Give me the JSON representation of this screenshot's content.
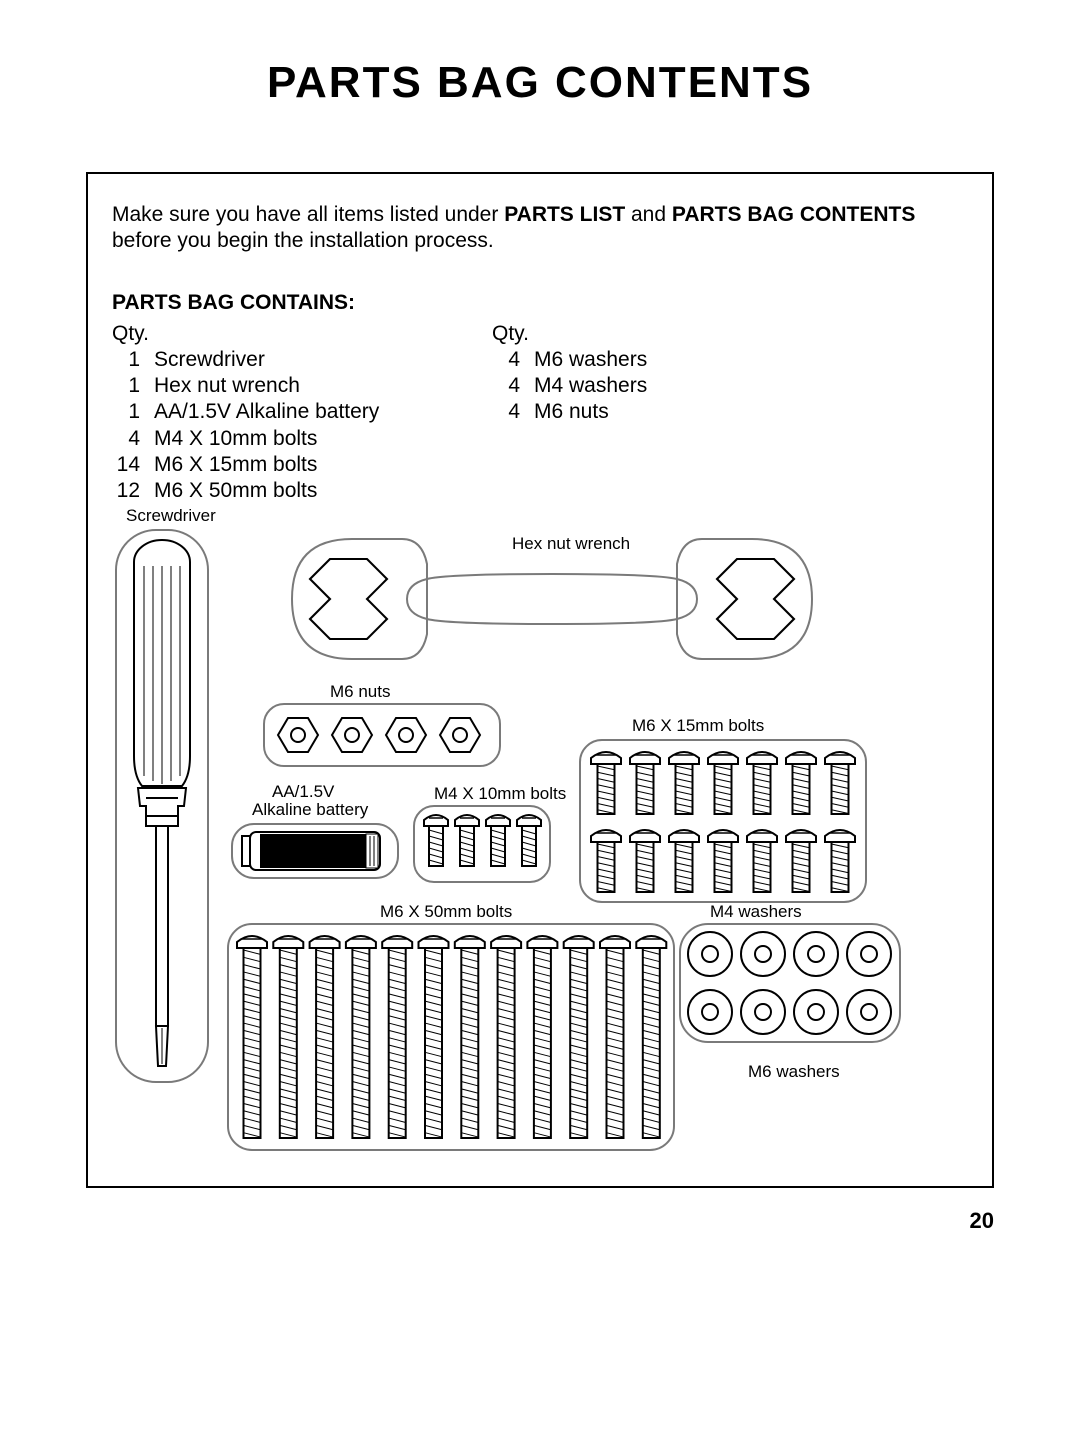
{
  "page_title": "PARTS BAG CONTENTS",
  "intro_prefix": "Make sure you have all items listed under ",
  "intro_bold1": "PARTS LIST",
  "intro_mid": " and ",
  "intro_bold2": "PARTS BAG CONTENTS",
  "intro_suffix": " before you begin the installation process.",
  "section_label": "PARTS BAG CONTAINS:",
  "qty_header": "Qty.",
  "col1": [
    {
      "qty": "1",
      "name": "Screwdriver"
    },
    {
      "qty": "1",
      "name": "Hex nut wrench"
    },
    {
      "qty": "1",
      "name": "AA/1.5V Alkaline battery"
    },
    {
      "qty": "4",
      "name": "M4 X 10mm bolts"
    },
    {
      "qty": "14",
      "name": "M6 X 15mm bolts"
    },
    {
      "qty": "12",
      "name": "M6 X 50mm bolts"
    }
  ],
  "col2": [
    {
      "qty": "4",
      "name": "M6 washers"
    },
    {
      "qty": "4",
      "name": "M4 washers"
    },
    {
      "qty": "4",
      "name": "M6 nuts"
    }
  ],
  "labels": {
    "screwdriver": "Screwdriver",
    "hex_wrench": "Hex nut wrench",
    "m6_nuts": "M6 nuts",
    "battery1": "AA/1.5V",
    "battery2": "Alkaline battery",
    "m4_bolts": "M4 X 10mm bolts",
    "m6_15_bolts": "M6 X 15mm bolts",
    "m6_50_bolts": "M6 X 50mm bolts",
    "m4_washers": "M4 washers",
    "m6_washers": "M6 washers"
  },
  "page_number": "20",
  "style": {
    "stroke": "#000000",
    "outline_stroke": "#7a7a7a",
    "outline_width": 2,
    "fill_white": "#ffffff",
    "fill_black": "#000000",
    "thread_pattern": "#000000"
  }
}
